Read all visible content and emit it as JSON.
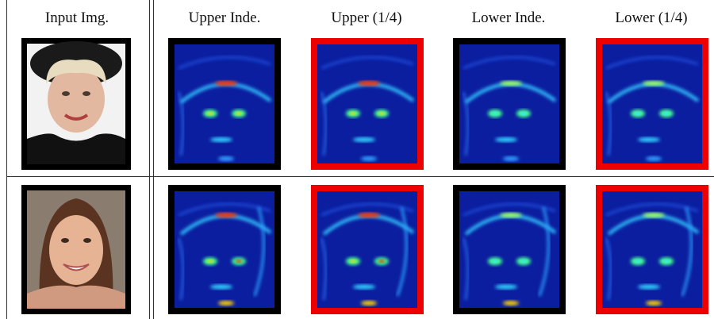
{
  "table": {
    "header": [
      "Input Img.",
      "Upper Inde.",
      "Upper (1/4)",
      "Lower Inde.",
      "Lower (1/4)"
    ]
  }
}
